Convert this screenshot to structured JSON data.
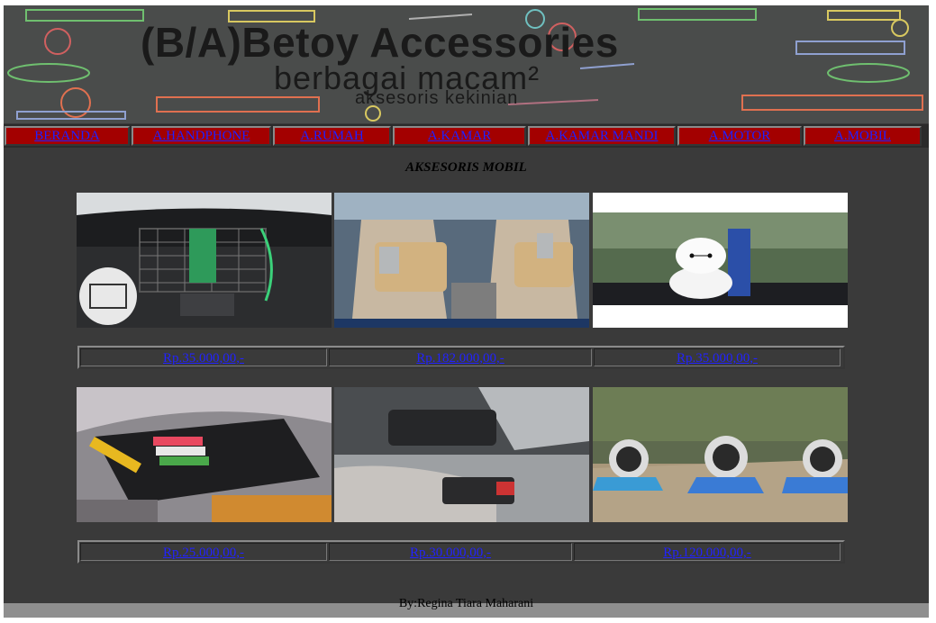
{
  "banner": {
    "title": "(B/A)Betoy Accessories",
    "subtitle": "berbagai macam²",
    "tagline": "aksesoris kekinian"
  },
  "nav": [
    {
      "label": "BERANDA"
    },
    {
      "label": "A.HANDPHONE"
    },
    {
      "label": "A.RUMAH"
    },
    {
      "label": "A.KAMAR"
    },
    {
      "label": "A.KAMAR MANDI"
    },
    {
      "label": "A.MOTOR"
    },
    {
      "label": "A.MOBIL"
    }
  ],
  "section_title": "AKSESORIS MOBIL",
  "products_row1": [
    {
      "price": "Rp.35.000,00,-",
      "image": "car-seat-net-organizer"
    },
    {
      "price": "Rp.182.000,00,-",
      "image": "car-seat-back-organizer"
    },
    {
      "price": "Rp.35.000,00,-",
      "image": "dashboard-figure-toy"
    }
  ],
  "products_row2": [
    {
      "price": "Rp.25.000,00,-",
      "image": "sun-visor-card-holder"
    },
    {
      "price": "Rp.30.000,00,-",
      "image": "car-cup-holder"
    },
    {
      "price": "Rp.120.000,00,-",
      "image": "dashboard-perfume-gauges"
    }
  ],
  "footer": "By:Regina Tiara Maharani"
}
